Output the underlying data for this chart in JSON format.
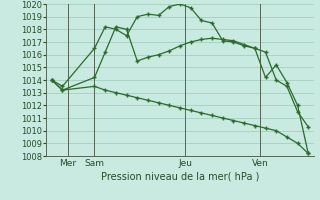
{
  "background_color": "#c8eae0",
  "grid_color": "#9ec9bc",
  "line_color": "#2d6a2d",
  "ylabel_start": 1008,
  "ylabel_end": 1020,
  "xlabel": "Pression niveau de la mer( hPa )",
  "day_labels": [
    "Mer",
    "Sam",
    "Jeu",
    "Ven"
  ],
  "day_vline_x": [
    2,
    4.5,
    13,
    20
  ],
  "xlim": [
    0,
    25
  ],
  "line1_x": [
    0.5,
    1.5,
    4.5,
    5.5,
    6.5,
    7.5,
    8.5,
    9.5,
    10.5,
    11.5,
    12.5,
    13.5,
    14.5,
    15.5,
    16.5,
    17.5,
    18.5,
    19.5,
    20.5,
    21.5,
    22.5,
    23.5,
    24.5
  ],
  "line1_y": [
    1014.0,
    1013.5,
    1016.5,
    1018.2,
    1018.0,
    1017.5,
    1019.0,
    1019.2,
    1019.1,
    1019.8,
    1020.0,
    1019.7,
    1018.7,
    1018.5,
    1017.1,
    1017.0,
    1016.7,
    1016.5,
    1014.2,
    1015.2,
    1013.8,
    1012.0,
    1008.2
  ],
  "line2_x": [
    0.5,
    1.5,
    4.5,
    5.5,
    6.5,
    7.5,
    8.5,
    9.5,
    10.5,
    11.5,
    12.5,
    13.5,
    14.5,
    15.5,
    16.5,
    17.5,
    18.5,
    19.5,
    20.5,
    21.5,
    22.5,
    23.5,
    24.5
  ],
  "line2_y": [
    1014.0,
    1013.2,
    1014.2,
    1016.2,
    1018.2,
    1018.0,
    1015.5,
    1015.8,
    1016.0,
    1016.3,
    1016.7,
    1017.0,
    1017.2,
    1017.3,
    1017.2,
    1017.1,
    1016.8,
    1016.5,
    1016.2,
    1014.0,
    1013.5,
    1011.5,
    1010.3
  ],
  "line3_x": [
    0.5,
    1.5,
    4.5,
    5.5,
    6.5,
    7.5,
    8.5,
    9.5,
    10.5,
    11.5,
    12.5,
    13.5,
    14.5,
    15.5,
    16.5,
    17.5,
    18.5,
    19.5,
    20.5,
    21.5,
    22.5,
    23.5,
    24.5
  ],
  "line3_y": [
    1014.0,
    1013.2,
    1013.5,
    1013.2,
    1013.0,
    1012.8,
    1012.6,
    1012.4,
    1012.2,
    1012.0,
    1011.8,
    1011.6,
    1011.4,
    1011.2,
    1011.0,
    1010.8,
    1010.6,
    1010.4,
    1010.2,
    1010.0,
    1009.5,
    1009.0,
    1008.2
  ]
}
